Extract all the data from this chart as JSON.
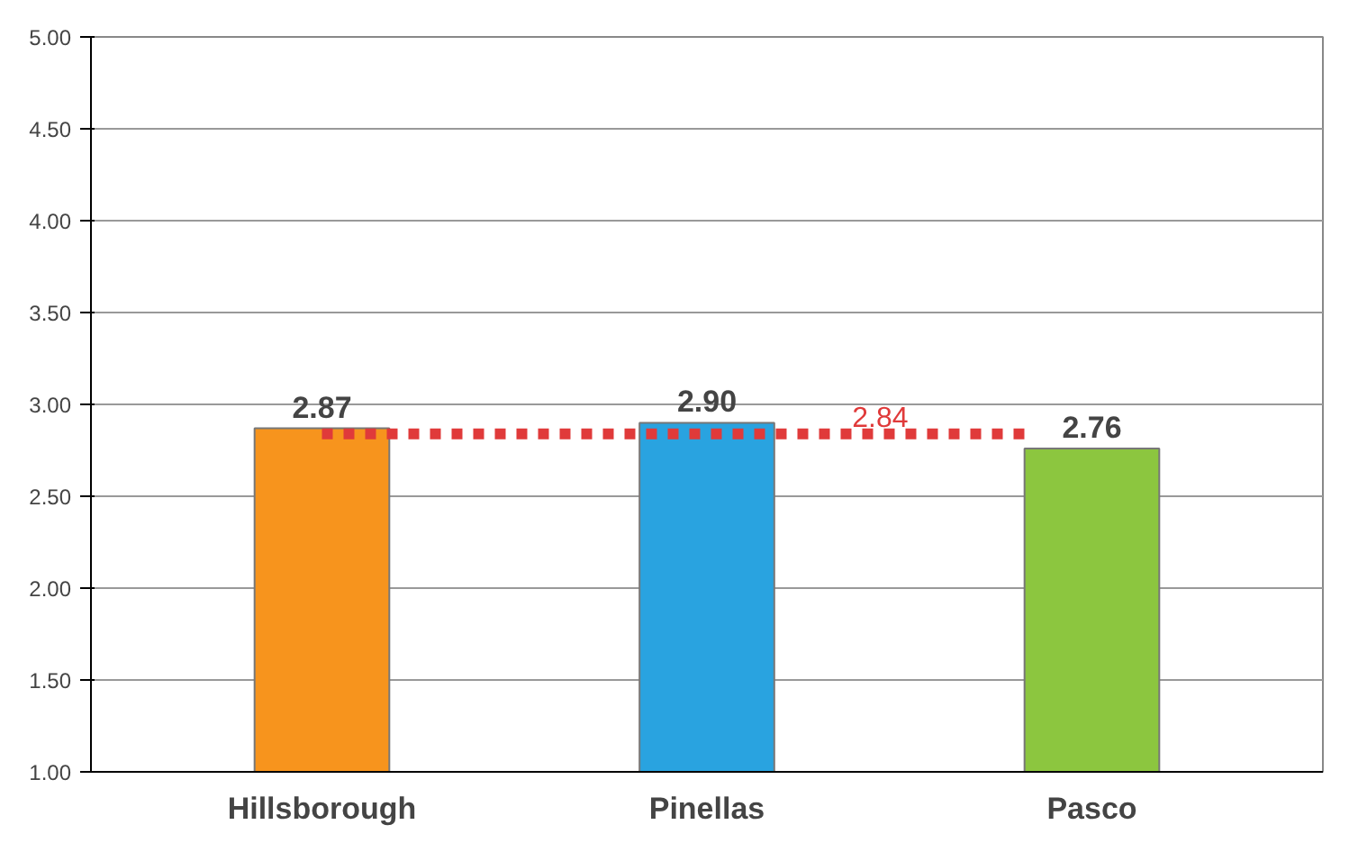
{
  "chart_data": {
    "type": "bar",
    "categories": [
      "Hillsborough",
      "Pinellas",
      "Pasco"
    ],
    "values": [
      2.87,
      2.9,
      2.76
    ],
    "colors": [
      "#f7941d",
      "#29a3e0",
      "#8cc63f"
    ],
    "ylim": [
      1,
      5
    ],
    "yticks": [
      {
        "value": 1,
        "label": "1.00"
      },
      {
        "value": 1.5,
        "label": "1.50"
      },
      {
        "value": 2,
        "label": "2.00"
      },
      {
        "value": 2.5,
        "label": "2.50"
      },
      {
        "value": 3,
        "label": "3.00"
      },
      {
        "value": 3.5,
        "label": "3.50"
      },
      {
        "value": 4,
        "label": "4.00"
      },
      {
        "value": 4.5,
        "label": "4.50"
      },
      {
        "value": 5,
        "label": "5.00"
      }
    ],
    "grid": "y",
    "value_labels": [
      "2.87",
      "2.90",
      "2.76"
    ],
    "ref_lines": [
      {
        "axis": "y",
        "value": 2.84,
        "label": "2.84",
        "color": "#e03a3a",
        "line_style": "dashed"
      }
    ]
  }
}
